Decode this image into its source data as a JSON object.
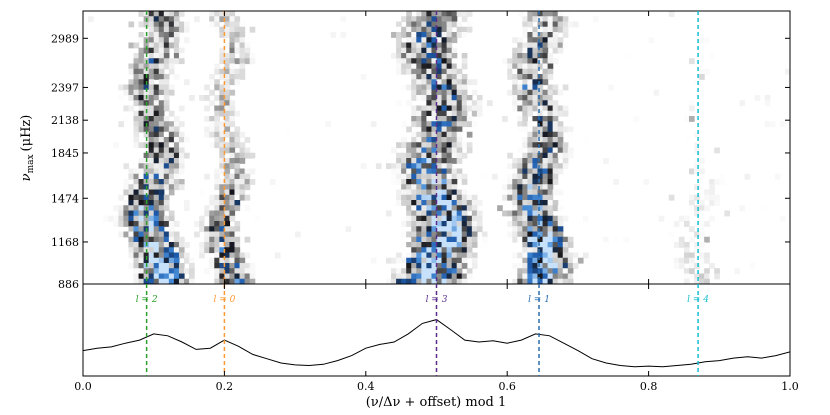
{
  "chart_data": {
    "type": "heatmap",
    "title": "",
    "heatmap_panel": {
      "ylabel_main": "ν",
      "ylabel_sub": "max",
      "ylabel_unit": "(μHz)",
      "y_ticks": [
        "886",
        "1168",
        "1474",
        "1845",
        "2138",
        "2397",
        "2989"
      ],
      "y_tick_fracs": [
        0.0,
        0.154,
        0.314,
        0.48,
        0.6,
        0.72,
        0.9
      ],
      "x_range": [
        0.0,
        1.0
      ],
      "colormap": "white-grey-black-blue",
      "ridges": [
        {
          "x": 0.1,
          "width": 0.035,
          "strength": 0.85
        },
        {
          "x": 0.205,
          "width": 0.028,
          "strength": 0.6
        },
        {
          "x": 0.5,
          "width": 0.045,
          "strength": 1.0
        },
        {
          "x": 0.645,
          "width": 0.035,
          "strength": 0.85
        },
        {
          "x": 0.87,
          "width": 0.04,
          "strength": 0.25
        }
      ]
    },
    "mode_lines": [
      {
        "label": "l = 2",
        "x": 0.09,
        "color": "#2ca02c"
      },
      {
        "label": "l = 0",
        "x": 0.2,
        "color": "#ff9933"
      },
      {
        "label": "l = 3",
        "x": 0.5,
        "color": "#5b2d8e"
      },
      {
        "label": "l = 1",
        "x": 0.645,
        "color": "#2a6fb0"
      },
      {
        "label": "l = 4",
        "x": 0.87,
        "color": "#17becf"
      }
    ],
    "collapsed_profile": {
      "x": [
        0.0,
        0.02,
        0.04,
        0.06,
        0.08,
        0.1,
        0.12,
        0.14,
        0.16,
        0.18,
        0.2,
        0.22,
        0.24,
        0.26,
        0.28,
        0.3,
        0.32,
        0.34,
        0.36,
        0.38,
        0.4,
        0.42,
        0.44,
        0.46,
        0.48,
        0.5,
        0.52,
        0.54,
        0.56,
        0.58,
        0.6,
        0.62,
        0.64,
        0.66,
        0.68,
        0.7,
        0.72,
        0.74,
        0.76,
        0.78,
        0.8,
        0.82,
        0.84,
        0.86,
        0.88,
        0.9,
        0.92,
        0.94,
        0.96,
        0.98,
        1.0
      ],
      "y": [
        0.28,
        0.32,
        0.34,
        0.4,
        0.45,
        0.55,
        0.52,
        0.42,
        0.3,
        0.32,
        0.45,
        0.35,
        0.22,
        0.15,
        0.08,
        0.05,
        0.04,
        0.06,
        0.12,
        0.2,
        0.32,
        0.38,
        0.42,
        0.55,
        0.72,
        0.78,
        0.62,
        0.45,
        0.42,
        0.44,
        0.4,
        0.45,
        0.55,
        0.52,
        0.4,
        0.28,
        0.15,
        0.08,
        0.04,
        0.02,
        0.03,
        0.02,
        0.04,
        0.06,
        0.1,
        0.12,
        0.16,
        0.18,
        0.16,
        0.2,
        0.26
      ]
    },
    "x_ticks": [
      "0.0",
      "0.2",
      "0.4",
      "0.6",
      "0.8",
      "1.0"
    ],
    "x_tick_values": [
      0.0,
      0.2,
      0.4,
      0.6,
      0.8,
      1.0
    ],
    "xlabel": "(ν/Δν + offset) mod 1"
  }
}
